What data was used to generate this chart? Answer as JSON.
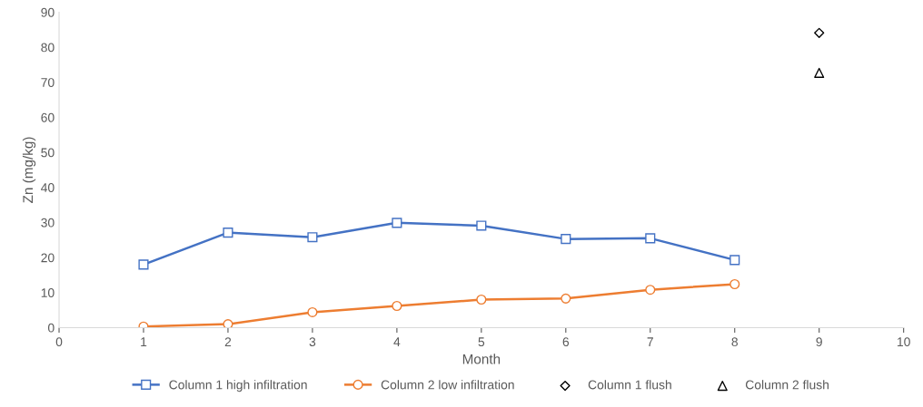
{
  "chart_data": {
    "type": "line",
    "xlabel": "Month",
    "ylabel": "Zn (mg/kg)",
    "xlim": [
      0,
      10
    ],
    "xticks": [
      0,
      1,
      2,
      3,
      4,
      5,
      6,
      7,
      8,
      9,
      10
    ],
    "ylim": [
      0,
      90
    ],
    "yticks": [
      0,
      10,
      20,
      30,
      40,
      50,
      60,
      70,
      80,
      90
    ],
    "grid": false,
    "legend": "bottom",
    "line_style": "solid",
    "series": [
      {
        "name": "Column 1 high infiltration",
        "color": "#4472c4",
        "marker": "square",
        "x": [
          1,
          2,
          3,
          4,
          5,
          6,
          7,
          8
        ],
        "values": [
          18.0,
          27.1,
          25.8,
          29.9,
          29.1,
          25.3,
          25.5,
          19.3
        ]
      },
      {
        "name": "Column 2 low infiltration",
        "color": "#ed7d31",
        "marker": "circle",
        "x": [
          1,
          2,
          3,
          4,
          5,
          6,
          7,
          8
        ],
        "values": [
          0.3,
          1.0,
          4.4,
          6.2,
          8.0,
          8.3,
          10.8,
          12.4
        ]
      },
      {
        "name": "Column 1 flush",
        "type": "scatter",
        "color": "#000000",
        "marker": "diamond",
        "x": [
          9
        ],
        "values": [
          84.1
        ]
      },
      {
        "name": "Column 2 flush",
        "type": "scatter",
        "color": "#000000",
        "marker": "triangle",
        "x": [
          9
        ],
        "values": [
          72.7
        ]
      }
    ]
  }
}
